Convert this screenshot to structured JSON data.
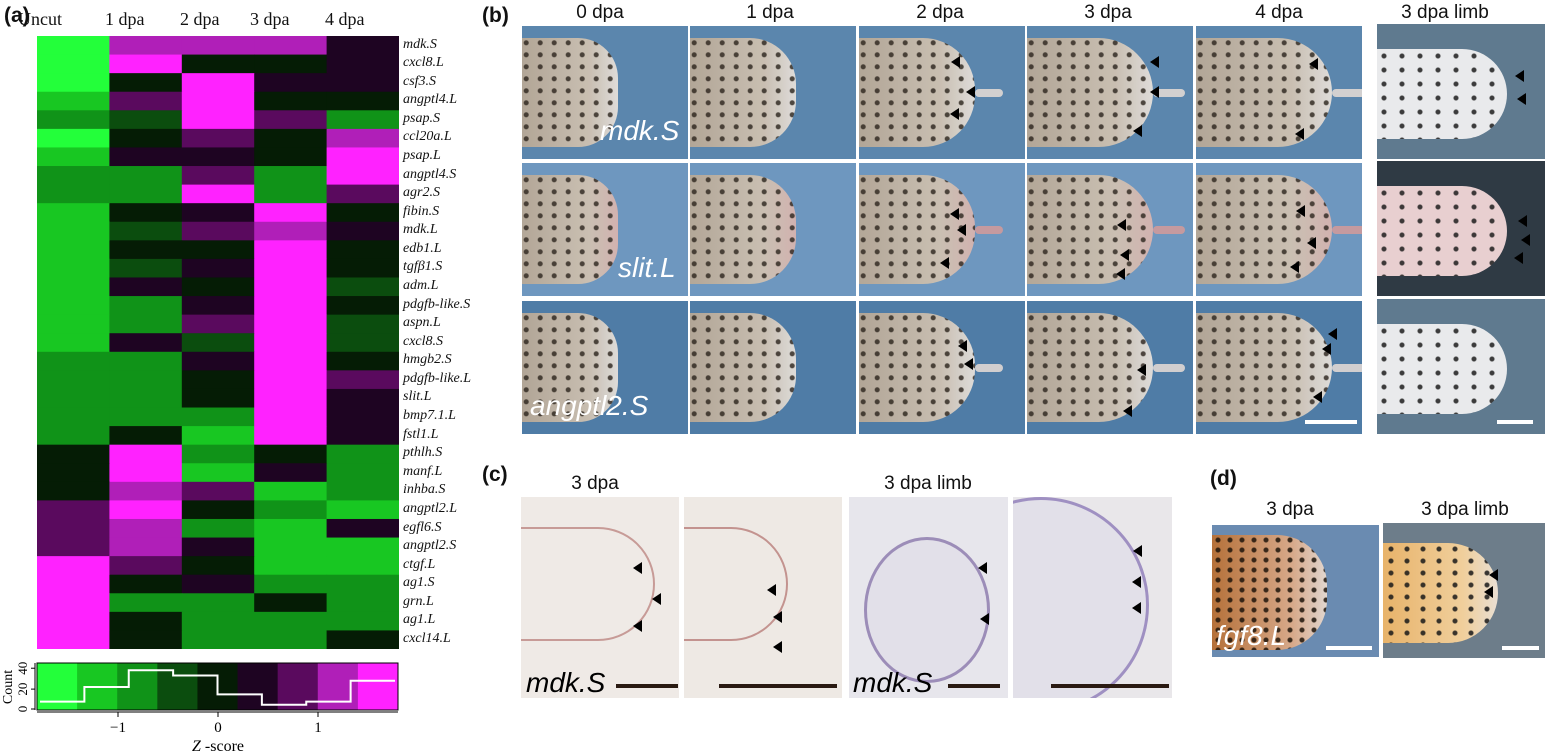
{
  "panels": {
    "a": "(a)",
    "b": "(b)",
    "c": "(c)",
    "d": "(d)"
  },
  "heatmap": {
    "columns": [
      "Uncut",
      "1 dpa",
      "2 dpa",
      "3 dpa",
      "4 dpa"
    ],
    "genes": [
      "mdk.S",
      "cxcl8.L",
      "csf3.S",
      "angptl4.L",
      "psap.S",
      "ccl20a.L",
      "psap.L",
      "angptl4.S",
      "agr2.S",
      "fibin.S",
      "mdk.L",
      "edb1.L",
      "tgfβ1.S",
      "adm.L",
      "pdgfb-like.S",
      "aspn.L",
      "cxcl8.S",
      "hmgb2.S",
      "pdgfb-like.L",
      "slit.L",
      "bmp7.1.L",
      "fstl1.L",
      "pthlh.S",
      "manf.L",
      "inhba.S",
      "angptl2.L",
      "egfl6.S",
      "angptl2.S",
      "ctgf.L",
      "ag1.S",
      "grn.L",
      "ag1.L",
      "cxcl14.L"
    ],
    "palette": {
      "-4": "#23ff3a",
      "-3": "#18c722",
      "-2": "#109318",
      "-1": "#0b4d0e",
      "-0": "#051c05",
      "0": "#1e0422",
      "1": "#5a0a5e",
      "2": "#b01fb8",
      "3": "#ff22ff"
    },
    "levels": [
      [
        "-4",
        "2",
        "2",
        "2",
        "0"
      ],
      [
        "-4",
        "3",
        "-0",
        "-0",
        "0"
      ],
      [
        "-4",
        "-0",
        "3",
        "0",
        "0"
      ],
      [
        "-3",
        "1",
        "3",
        "-0",
        "-0"
      ],
      [
        "-2",
        "-1",
        "3",
        "1",
        "-2"
      ],
      [
        "-4",
        "-0",
        "1",
        "-0",
        "2"
      ],
      [
        "-3",
        "0",
        "0",
        "-0",
        "3"
      ],
      [
        "-2",
        "-2",
        "1",
        "-2",
        "3"
      ],
      [
        "-2",
        "-2",
        "3",
        "-2",
        "1"
      ],
      [
        "-3",
        "-0",
        "0",
        "3",
        "-0"
      ],
      [
        "-3",
        "-1",
        "1",
        "2",
        "0"
      ],
      [
        "-3",
        "-0",
        "-0",
        "3",
        "-0"
      ],
      [
        "-3",
        "-1",
        "0",
        "3",
        "-0"
      ],
      [
        "-3",
        "0",
        "-0",
        "3",
        "-1"
      ],
      [
        "-3",
        "-2",
        "0",
        "3",
        "-0"
      ],
      [
        "-3",
        "-2",
        "1",
        "3",
        "-1"
      ],
      [
        "-3",
        "0",
        "-1",
        "3",
        "-1"
      ],
      [
        "-2",
        "-2",
        "0",
        "3",
        "-0"
      ],
      [
        "-2",
        "-2",
        "-0",
        "3",
        "1"
      ],
      [
        "-2",
        "-2",
        "-0",
        "3",
        "0"
      ],
      [
        "-2",
        "-2",
        "-2",
        "3",
        "0"
      ],
      [
        "-2",
        "-0",
        "-3",
        "3",
        "0"
      ],
      [
        "-0",
        "3",
        "-2",
        "-0",
        "-2"
      ],
      [
        "-0",
        "3",
        "-3",
        "0",
        "-2"
      ],
      [
        "-0",
        "2",
        "1",
        "-3",
        "-2"
      ],
      [
        "1",
        "3",
        "-0",
        "-2",
        "-3"
      ],
      [
        "1",
        "2",
        "-2",
        "-3",
        "0"
      ],
      [
        "1",
        "2",
        "0",
        "-3",
        "-3"
      ],
      [
        "3",
        "1",
        "-0",
        "-3",
        "-3"
      ],
      [
        "3",
        "-0",
        "0",
        "-2",
        "-2"
      ],
      [
        "3",
        "-2",
        "-2",
        "-0",
        "-2"
      ],
      [
        "3",
        "-0",
        "-2",
        "-2",
        "-2"
      ],
      [
        "3",
        "-0",
        "-2",
        "-2",
        "-0"
      ]
    ]
  },
  "colorbar": {
    "count_label": "Count",
    "count_ticks": [
      "0",
      "20",
      "40"
    ],
    "z_ticks": [
      "−1",
      "0",
      "1"
    ],
    "z_label": "Z -score",
    "z_label_prefix": "Z",
    "z_label_suffix": " -score",
    "colors": [
      "#23ff3a",
      "#18c722",
      "#109318",
      "#0b4d0e",
      "#051c05",
      "#1e0422",
      "#5a0a5e",
      "#b01fb8",
      "#ff22ff"
    ],
    "histogram": [
      8,
      22,
      38,
      33,
      15,
      5,
      8,
      28
    ]
  },
  "panel_b": {
    "headers": [
      "0 dpa",
      "1 dpa",
      "2 dpa",
      "3 dpa",
      "4 dpa",
      "3 dpa limb"
    ],
    "row_labels": [
      "mdk.S",
      "slit.L",
      "angptl2.S"
    ]
  },
  "panel_c": {
    "headers": [
      "3 dpa",
      "3 dpa limb"
    ],
    "labels": [
      "mdk.S",
      "mdk.S"
    ]
  },
  "panel_d": {
    "headers": [
      "3 dpa",
      "3 dpa limb"
    ],
    "label": "fgf8.L"
  }
}
